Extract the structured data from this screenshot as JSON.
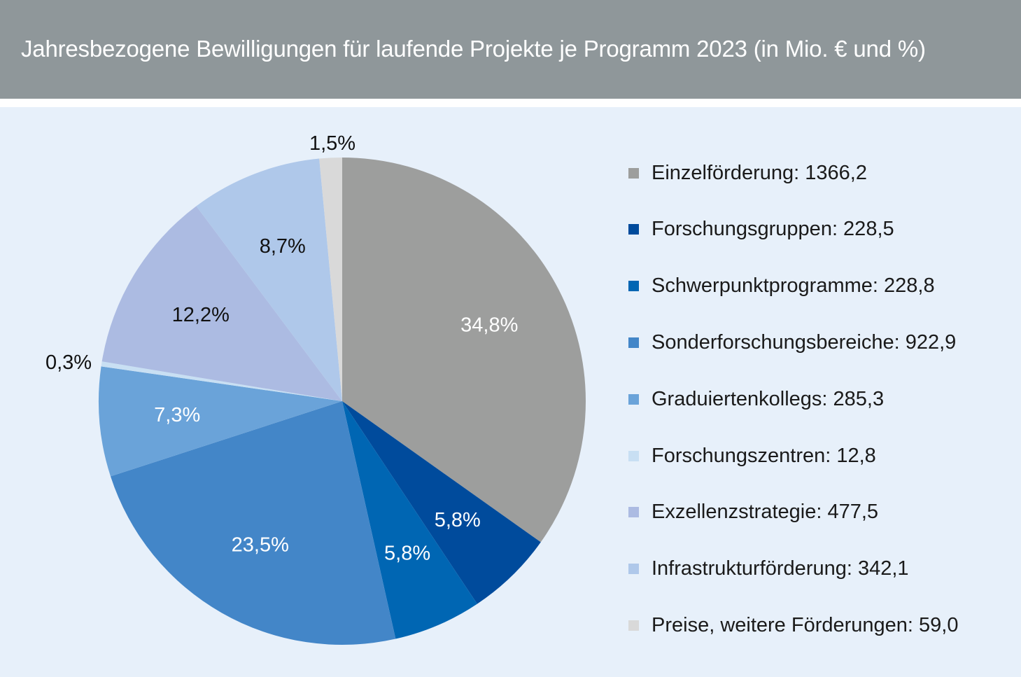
{
  "header": {
    "title": "Jahresbezogene Bewilligungen für laufende Projekte je Programm 2023 (in Mio. € und %)"
  },
  "chart_data": {
    "type": "pie",
    "title": "Jahresbezogene Bewilligungen für laufende Projekte je Programm 2023 (in Mio. € und %)",
    "unit": "Mio. €",
    "legend_position": "right",
    "slices": [
      {
        "label": "Einzelförderung",
        "value": 1366.2,
        "value_text": "1366,2",
        "percent": 34.8,
        "percent_text": "34,8%",
        "color": "#9d9e9d",
        "label_color": "#ffffff"
      },
      {
        "label": "Forschungsgruppen",
        "value": 228.5,
        "value_text": "228,5",
        "percent": 5.8,
        "percent_text": "5,8%",
        "color": "#004b9c",
        "label_color": "#ffffff"
      },
      {
        "label": "Schwerpunktprogramme",
        "value": 228.8,
        "value_text": "228,8",
        "percent": 5.8,
        "percent_text": "5,8%",
        "color": "#0066b3",
        "label_color": "#ffffff"
      },
      {
        "label": "Sonderforschungsbereiche",
        "value": 922.9,
        "value_text": "922,9",
        "percent": 23.5,
        "percent_text": "23,5%",
        "color": "#4386c8",
        "label_color": "#ffffff"
      },
      {
        "label": "Graduiertenkollegs",
        "value": 285.3,
        "value_text": "285,3",
        "percent": 7.3,
        "percent_text": "7,3%",
        "color": "#6aa3d9",
        "label_color": "#ffffff"
      },
      {
        "label": "Forschungszentren",
        "value": 12.8,
        "value_text": "12,8",
        "percent": 0.3,
        "percent_text": "0,3%",
        "color": "#c8dff3",
        "label_color": "#111111"
      },
      {
        "label": "Exzellenzstrategie",
        "value": 477.5,
        "value_text": "477,5",
        "percent": 12.2,
        "percent_text": "12,2%",
        "color": "#acbbe2",
        "label_color": "#111111"
      },
      {
        "label": "Infrastrukturförderung",
        "value": 342.1,
        "value_text": "342,1",
        "percent": 8.7,
        "percent_text": "8,7%",
        "color": "#afc8ea",
        "label_color": "#111111"
      },
      {
        "label": "Preise, weitere Förderungen",
        "value": 59.0,
        "value_text": "59,0",
        "percent": 1.5,
        "percent_text": "1,5%",
        "color": "#d9d9d9",
        "label_color": "#111111"
      }
    ]
  }
}
